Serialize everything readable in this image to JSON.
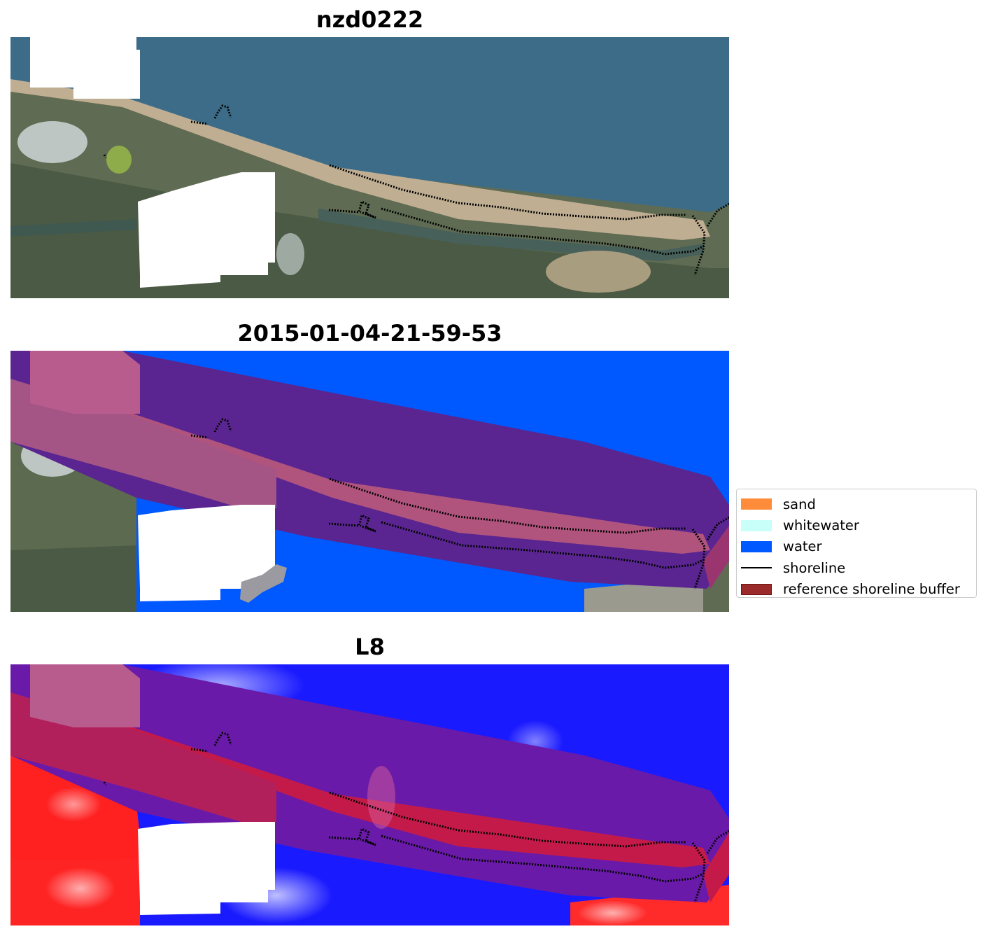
{
  "panels": [
    {
      "title": "nzd0222",
      "kind": "rgb"
    },
    {
      "title": "2015-01-04-21-59-53",
      "kind": "classified"
    },
    {
      "title": "L8",
      "kind": "index"
    }
  ],
  "legend": {
    "items": [
      {
        "label": "sand",
        "color": "#ff8c3a",
        "type": "patch"
      },
      {
        "label": "whitewater",
        "color": "#c8fff8",
        "type": "patch"
      },
      {
        "label": "water",
        "color": "#0059ff",
        "type": "patch"
      },
      {
        "label": "shoreline",
        "color": "#000000",
        "type": "line"
      },
      {
        "label": "reference shoreline buffer",
        "color": "#9b2a2a",
        "type": "patch",
        "edge": "#6e1515"
      }
    ]
  },
  "colors": {
    "ocean": "#3b6a86",
    "land": "#5c6a50",
    "sand_beach": "#b7a88e",
    "cloud_mask": "#ffffff",
    "water_class": "#0059ff",
    "buffer_over_water": "#5a2590",
    "buffer_over_land": "#b85c8e",
    "index_water": "#1a1aff",
    "index_land": "#ff2020",
    "index_buffer": "#6a1aa8"
  }
}
